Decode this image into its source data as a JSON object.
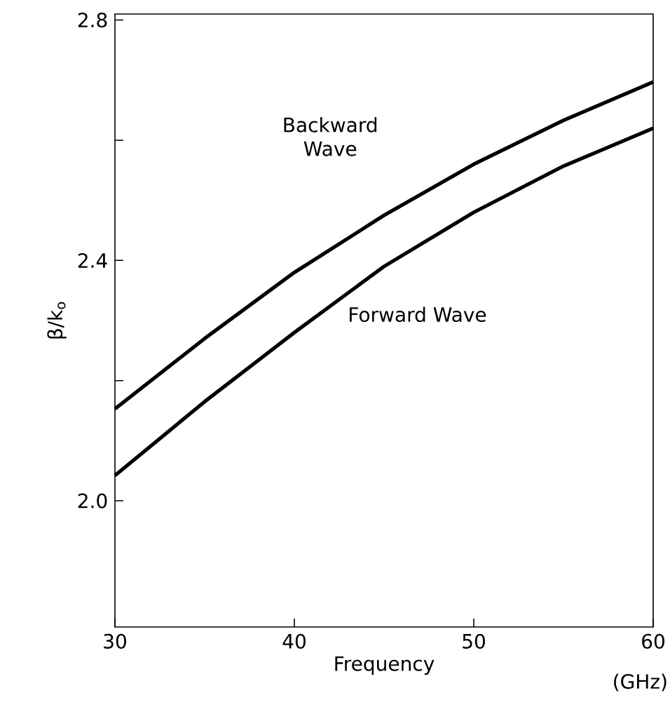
{
  "chart_data": {
    "type": "line",
    "xlabel": "Frequency",
    "ylabel": "β/k$_{o}$",
    "xlim": [
      30,
      60
    ],
    "ylim": [
      1.79,
      2.81
    ],
    "xticks": [
      30,
      40,
      50,
      60
    ],
    "yticks": [
      {
        "value": 2.0,
        "label": "2.0"
      },
      {
        "value": 2.2,
        "label": null
      },
      {
        "value": 2.4,
        "label": "2.4"
      },
      {
        "value": 2.6,
        "label": null
      },
      {
        "value": 2.8,
        "label": "2.8"
      }
    ],
    "grid": false,
    "marker": "none",
    "line_style": "solid",
    "series": [
      {
        "color": "#000000",
        "x": [
          30,
          35,
          40,
          45,
          50,
          55,
          60
        ],
        "values": [
          2.153,
          2.27,
          2.38,
          2.475,
          2.56,
          2.633,
          2.697
        ]
      },
      {
        "color": "#000000",
        "x": [
          30,
          35,
          40,
          45,
          50,
          55,
          60
        ],
        "values": [
          2.042,
          2.165,
          2.28,
          2.39,
          2.48,
          2.557,
          2.62
        ]
      }
    ],
    "annotations": [
      "Backward Wave",
      "Forward Wave",
      "(GHz)"
    ]
  }
}
